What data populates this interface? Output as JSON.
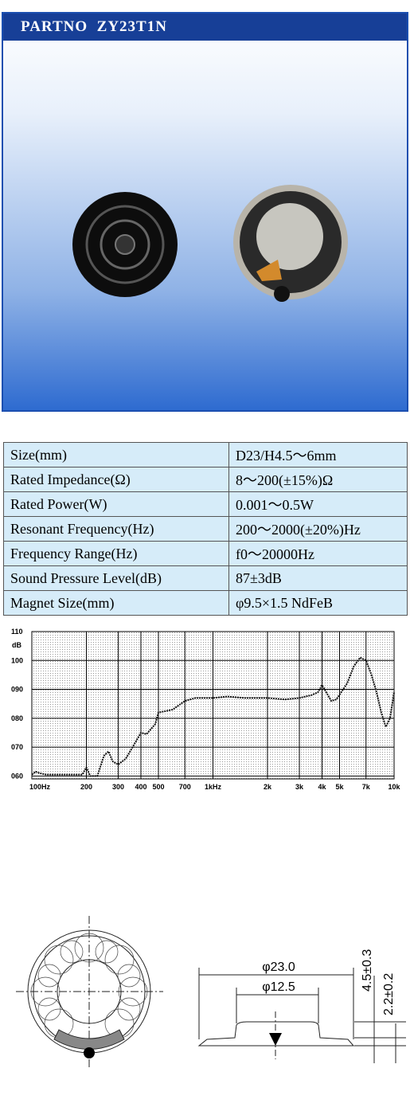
{
  "header": {
    "title": "PARTNO  ZY23T1N"
  },
  "table": {
    "rows": [
      [
        "Size(mm)",
        "D23/H4.5～6mm"
      ],
      [
        "Rated Impedance(Ω)",
        "8～200(±15%)Ω"
      ],
      [
        "Rated Power(W)",
        "0.001～0.5W"
      ],
      [
        "Resonant Frequency(Hz)",
        "200～2000(±20%)Hz"
      ],
      [
        "Frequency Range(Hz)",
        "f0～20000Hz"
      ],
      [
        "Sound Pressure Level(dB)",
        "87±3dB"
      ],
      [
        "Magnet Size(mm)",
        "φ9.5×1.5 NdFeB"
      ]
    ]
  },
  "chart_data": {
    "type": "line",
    "y_label": "dB",
    "color": "#111111",
    "log_x": true,
    "grid": true,
    "x": [
      100,
      105,
      110,
      120,
      150,
      190,
      200,
      210,
      230,
      250,
      265,
      280,
      300,
      330,
      360,
      400,
      430,
      480,
      500,
      550,
      600,
      700,
      800,
      1000,
      1200,
      1500,
      2000,
      2500,
      3000,
      3500,
      3800,
      4000,
      4500,
      4800,
      5500,
      6000,
      6500,
      7000,
      7500,
      8000,
      8500,
      9000,
      9500,
      10000
    ],
    "values": [
      60.5,
      61.5,
      61,
      60.5,
      60.5,
      60.5,
      63,
      60,
      60,
      67,
      68.5,
      65,
      64,
      66,
      70,
      75,
      74.5,
      78,
      82,
      82.5,
      83,
      86,
      87,
      87,
      87.5,
      87,
      87,
      86.5,
      87,
      88,
      89,
      91.5,
      86,
      86.5,
      92,
      98,
      101,
      100,
      95,
      89,
      82,
      77,
      80,
      89
    ],
    "xlim": [
      100,
      10000
    ],
    "ylim": [
      59,
      110
    ],
    "xticks": [
      {
        "value": 100,
        "label": "100Hz"
      },
      200,
      300,
      400,
      500,
      700,
      {
        "value": 1000,
        "label": "1kHz"
      },
      {
        "value": 2000,
        "label": "2k"
      },
      {
        "value": 3000,
        "label": "3k"
      },
      {
        "value": 4000,
        "label": "4k"
      },
      {
        "value": 5000,
        "label": "5k"
      },
      {
        "value": 7000,
        "label": "7k"
      },
      {
        "value": 10000,
        "label": "10k"
      }
    ],
    "yticks": [
      {
        "value": 60,
        "label": "060"
      },
      {
        "value": 70,
        "label": "070"
      },
      {
        "value": 80,
        "label": "080"
      },
      {
        "value": 90,
        "label": "090"
      },
      100,
      110
    ]
  },
  "drawing": {
    "outer_diameter": "φ23.0",
    "inner_diameter": "φ12.5",
    "height": "4.5±0.3",
    "rim_height": "2.2±0.2"
  }
}
